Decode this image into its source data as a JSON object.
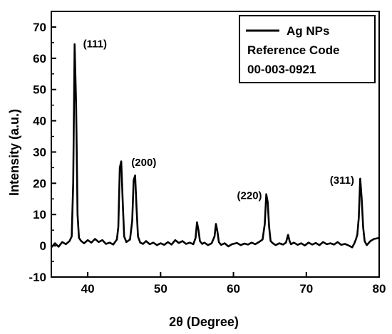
{
  "chart_data": {
    "type": "line",
    "xlabel": "2θ (Degree)",
    "ylabel": "Intensity (a.u.)",
    "xlim": [
      35,
      80
    ],
    "ylim": [
      -10,
      75
    ],
    "xticks": [
      40,
      50,
      60,
      70,
      80
    ],
    "yticks": [
      -10,
      0,
      10,
      20,
      30,
      40,
      50,
      60,
      70
    ],
    "legend": {
      "position": "top-right",
      "entries": [
        "Ag NPs",
        "Reference Code",
        "00-003-0921"
      ]
    },
    "series": [
      {
        "name": "Ag NPs",
        "color": "#000000",
        "x": [
          35,
          35.5,
          36,
          36.5,
          37,
          37.5,
          37.8,
          38.0,
          38.2,
          38.4,
          38.6,
          38.8,
          39.1,
          39.5,
          40,
          40.5,
          41,
          41.5,
          42,
          42.5,
          43,
          43.5,
          44,
          44.2,
          44.4,
          44.6,
          44.8,
          45.0,
          45.3,
          45.8,
          46.1,
          46.3,
          46.5,
          46.7,
          46.9,
          47.2,
          47.6,
          48,
          48.5,
          49,
          49.5,
          50,
          50.5,
          51,
          51.5,
          52,
          52.5,
          53,
          53.5,
          54,
          54.5,
          54.8,
          55.0,
          55.2,
          55.4,
          55.7,
          56,
          56.5,
          57,
          57.4,
          57.6,
          57.8,
          58.0,
          58.3,
          58.8,
          59.3,
          59.8,
          60.5,
          61,
          61.5,
          62,
          62.5,
          63,
          63.5,
          64,
          64.3,
          64.5,
          64.7,
          64.9,
          65.1,
          65.4,
          65.8,
          66.3,
          66.8,
          67.2,
          67.5,
          67.7,
          67.9,
          68.3,
          68.8,
          69.3,
          69.8,
          70.3,
          70.8,
          71.3,
          71.8,
          72.3,
          72.8,
          73.3,
          73.8,
          74.3,
          74.8,
          75.3,
          75.8,
          76.3,
          76.6,
          76.8,
          77.0,
          77.2,
          77.4,
          77.6,
          77.8,
          78.0,
          78.3,
          78.8,
          79.3,
          80
        ],
        "y": [
          -0.5,
          0.8,
          -0.3,
          1.2,
          0.5,
          1.5,
          3,
          20,
          64.5,
          45,
          10,
          2.5,
          1.5,
          0.8,
          1.8,
          1.0,
          2.2,
          1.2,
          1.8,
          0.6,
          1.0,
          0.4,
          2.0,
          6,
          25,
          27,
          14,
          3,
          1.2,
          2.0,
          8,
          21,
          22.5,
          12,
          3,
          1.0,
          0.6,
          1.5,
          0.5,
          1.0,
          0.2,
          0.8,
          0.3,
          1.2,
          0.4,
          1.8,
          0.9,
          1.5,
          0.6,
          1.0,
          0.5,
          2.5,
          7.5,
          5,
          1.5,
          0.6,
          1.0,
          0.2,
          0.8,
          3,
          7,
          4.5,
          1.2,
          0.3,
          0.8,
          -0.2,
          0.5,
          0.9,
          0.2,
          0.7,
          0.4,
          1.0,
          0.5,
          1.2,
          2.0,
          7,
          16.5,
          14,
          6,
          1.5,
          0.8,
          0.2,
          0.8,
          0.4,
          1.0,
          3.5,
          1.5,
          0.5,
          1.0,
          0.3,
          0.8,
          0.1,
          1.0,
          0.4,
          0.9,
          0.2,
          1.2,
          0.5,
          0.8,
          0.4,
          1.2,
          0.3,
          0.6,
          0.1,
          -0.5,
          0.8,
          2.0,
          3.5,
          9,
          21.5,
          15,
          6,
          1.5,
          0.2,
          1.5,
          2.2,
          2.5
        ]
      }
    ],
    "annotations": [
      {
        "text": "(111)",
        "x": 41.0,
        "y": 63.5
      },
      {
        "text": "(200)",
        "x": 47.7,
        "y": 25.5
      },
      {
        "text": "(220)",
        "x": 62.2,
        "y": 15.0
      },
      {
        "text": "(311)",
        "x": 74.9,
        "y": 19.8
      }
    ]
  }
}
